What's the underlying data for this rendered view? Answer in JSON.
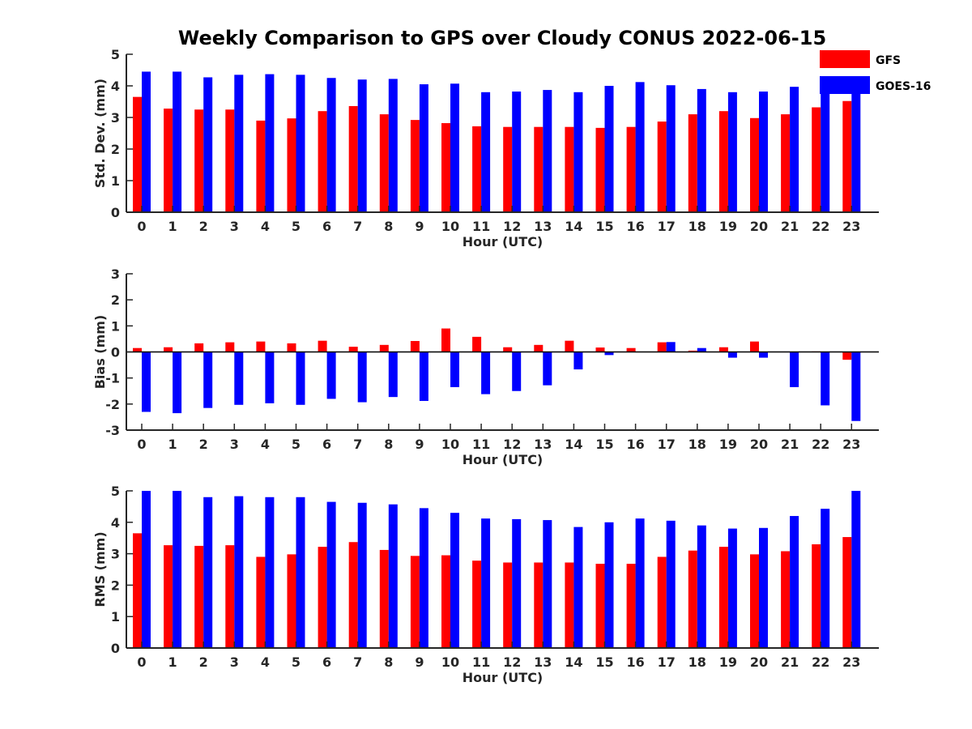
{
  "title": "Weekly Comparison to GPS over Cloudy CONUS 2022-06-15",
  "colors": {
    "GFS": "#ff0000",
    "GOES-16": "#0000ff",
    "axis": "#262626"
  },
  "legend": {
    "placement": "top-right",
    "entries": [
      "GFS",
      "GOES-16"
    ]
  },
  "chart_data": [
    {
      "type": "bar",
      "xlabel": "Hour (UTC)",
      "ylabel": "Std. Dev. (mm)",
      "categories": [
        "0",
        "1",
        "2",
        "3",
        "4",
        "5",
        "6",
        "7",
        "8",
        "9",
        "10",
        "11",
        "12",
        "13",
        "14",
        "15",
        "16",
        "17",
        "18",
        "19",
        "20",
        "21",
        "22",
        "23"
      ],
      "ylim": [
        0,
        5
      ],
      "yticks": [
        0,
        1,
        2,
        3,
        4,
        5
      ],
      "grid": false,
      "series": [
        {
          "name": "GFS",
          "values": [
            3.65,
            3.28,
            3.25,
            3.25,
            2.9,
            2.97,
            3.2,
            3.36,
            3.1,
            2.92,
            2.82,
            2.72,
            2.7,
            2.7,
            2.7,
            2.67,
            2.7,
            2.87,
            3.1,
            3.2,
            2.98,
            3.1,
            3.32,
            3.52
          ]
        },
        {
          "name": "GOES-16",
          "values": [
            4.45,
            4.45,
            4.27,
            4.35,
            4.37,
            4.35,
            4.25,
            4.2,
            4.22,
            4.05,
            4.07,
            3.8,
            3.82,
            3.87,
            3.8,
            4.0,
            4.12,
            4.02,
            3.9,
            3.8,
            3.82,
            3.97,
            3.92,
            3.92
          ]
        }
      ]
    },
    {
      "type": "bar",
      "xlabel": "Hour (UTC)",
      "ylabel": "Bias (mm)",
      "categories": [
        "0",
        "1",
        "2",
        "3",
        "4",
        "5",
        "6",
        "7",
        "8",
        "9",
        "10",
        "11",
        "12",
        "13",
        "14",
        "15",
        "16",
        "17",
        "18",
        "19",
        "20",
        "21",
        "22",
        "23"
      ],
      "ylim": [
        -3,
        3
      ],
      "yticks": [
        -3,
        -2,
        -1,
        0,
        1,
        2,
        3
      ],
      "grid": false,
      "series": [
        {
          "name": "GFS",
          "values": [
            0.15,
            0.18,
            0.33,
            0.37,
            0.4,
            0.33,
            0.43,
            0.2,
            0.27,
            0.42,
            0.9,
            0.58,
            0.18,
            0.27,
            0.43,
            0.17,
            0.15,
            0.37,
            0.05,
            0.18,
            0.4,
            0.0,
            0.02,
            -0.3
          ]
        },
        {
          "name": "GOES-16",
          "values": [
            -2.3,
            -2.35,
            -2.15,
            -2.03,
            -1.97,
            -2.03,
            -1.8,
            -1.93,
            -1.73,
            -1.88,
            -1.35,
            -1.62,
            -1.5,
            -1.28,
            -0.67,
            -0.12,
            0.0,
            0.38,
            0.15,
            -0.22,
            -0.22,
            -1.35,
            -2.05,
            -2.65
          ]
        }
      ]
    },
    {
      "type": "bar",
      "xlabel": "Hour (UTC)",
      "ylabel": "RMS (mm)",
      "categories": [
        "0",
        "1",
        "2",
        "3",
        "4",
        "5",
        "6",
        "7",
        "8",
        "9",
        "10",
        "11",
        "12",
        "13",
        "14",
        "15",
        "16",
        "17",
        "18",
        "19",
        "20",
        "21",
        "22",
        "23"
      ],
      "ylim": [
        0,
        5
      ],
      "yticks": [
        0,
        1,
        2,
        3,
        4,
        5
      ],
      "grid": false,
      "series": [
        {
          "name": "GFS",
          "values": [
            3.65,
            3.27,
            3.25,
            3.27,
            2.9,
            2.98,
            3.22,
            3.37,
            3.12,
            2.93,
            2.95,
            2.78,
            2.72,
            2.72,
            2.72,
            2.68,
            2.68,
            2.9,
            3.1,
            3.22,
            2.98,
            3.08,
            3.3,
            3.53
          ]
        },
        {
          "name": "GOES-16",
          "values": [
            5.0,
            5.0,
            4.8,
            4.83,
            4.8,
            4.8,
            4.65,
            4.62,
            4.57,
            4.45,
            4.3,
            4.12,
            4.1,
            4.07,
            3.85,
            4.0,
            4.12,
            4.05,
            3.9,
            3.8,
            3.82,
            4.2,
            4.43,
            5.0
          ]
        }
      ]
    }
  ]
}
